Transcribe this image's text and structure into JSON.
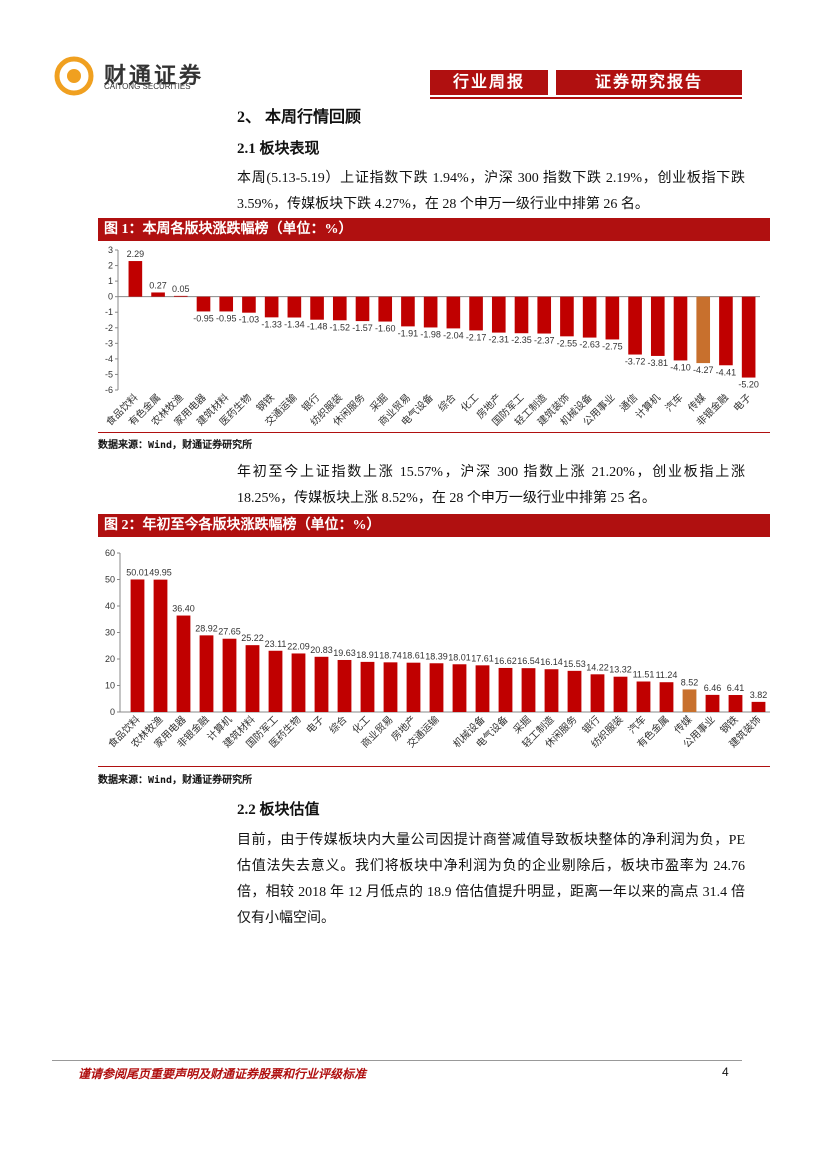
{
  "header": {
    "logo_cn": "财通证券",
    "logo_en": "CAITONG SECURITIES",
    "tab1": "行业周报",
    "tab2": "证券研究报告"
  },
  "section_title": "2、 本周行情回顾",
  "sub1": {
    "title": "2.1  板块表现",
    "para1": "本周(5.13-5.19）上证指数下跌 1.94%，沪深 300 指数下跌 2.19%，创业板指下跌 3.59%，传媒板块下跌 4.27%，在 28 个申万一级行业中排第 26 名。",
    "para2": "年初至今上证指数上涨 15.57%，沪深 300 指数上涨 21.20%，创业板指上涨 18.25%，传媒板块上涨 8.52%，在 28 个申万一级行业中排第 25 名。"
  },
  "sub2": {
    "title": "2.2  板块估值",
    "para": "目前，由于传媒板块内大量公司因提计商誉减值导致板块整体的净利润为负，PE 估值法失去意义。我们将板块中净利润为负的企业剔除后，板块市盈率为 24.76 倍，相较 2018 年 12 月低点的 18.9 倍估值提升明显，距离一年以来的高点 31.4 倍仅有小幅空间。"
  },
  "chart_data": [
    {
      "type": "bar",
      "title": "图 1：本周各版块涨跌幅榜（单位：%）",
      "source": "数据来源：Wind，财通证券研究所",
      "categories": [
        "食品饮料",
        "有色金属",
        "农林牧渔",
        "家用电器",
        "建筑材料",
        "医药生物",
        "钢铁",
        "交通运输",
        "银行",
        "纺织服装",
        "休闲服务",
        "采掘",
        "商业贸易",
        "电气设备",
        "综合",
        "化工",
        "房地产",
        "国防军工",
        "轻工制造",
        "建筑装饰",
        "机械设备",
        "公用事业",
        "通信",
        "计算机",
        "汽车",
        "传媒",
        "非银金融",
        "电子"
      ],
      "values": [
        2.29,
        0.27,
        0.05,
        -0.95,
        -0.95,
        -1.03,
        -1.33,
        -1.34,
        -1.48,
        -1.52,
        -1.57,
        -1.6,
        -1.91,
        -1.98,
        -2.04,
        -2.17,
        -2.31,
        -2.35,
        -2.37,
        -2.55,
        -2.63,
        -2.75,
        -3.72,
        -3.81,
        -4.1,
        -4.27,
        -4.41,
        -5.2
      ],
      "value_labels": [
        "2.29",
        "0.27",
        "0.05",
        "-0.95",
        "-0.95",
        "-1.03",
        "-1.33",
        "-1.34",
        "-1.48",
        "-1.52",
        "-1.57",
        "-1.60",
        "-1.91",
        "-1.98",
        "-2.04",
        "-2.17",
        "-2.31",
        "-2.35",
        "-2.37",
        "-2.55",
        "-2.63",
        "-2.75",
        "-3.72",
        "-3.81",
        "-4.10",
        "-4.27",
        "-4.41",
        "-5.20"
      ],
      "color": "#c00000",
      "highlight": "传媒",
      "highlight_color": "#c8702d",
      "ylim": [
        -6,
        3
      ],
      "yticks": [
        3,
        2,
        1,
        0,
        -1,
        -2,
        -3,
        -4,
        -5,
        -6
      ]
    },
    {
      "type": "bar",
      "title": "图 2：年初至今各版块涨跌幅榜（单位：%）",
      "source": "数据来源：Wind，财通证券研究所",
      "categories": [
        "食品饮料",
        "农林牧渔",
        "家用电器",
        "非银金融",
        "计算机",
        "建筑材料",
        "国防军工",
        "医药生物",
        "电子",
        "综合",
        "化工",
        "商业贸易",
        "房地产",
        "交通运输",
        null,
        "机械设备",
        "电气设备",
        "采掘",
        "轻工制造",
        "休闲服务",
        "银行",
        "纺织服装",
        "汽车",
        "有色金属",
        "传媒",
        "公用事业",
        "钢铁",
        "建筑装饰"
      ],
      "values": [
        50.01,
        49.95,
        36.4,
        28.92,
        27.65,
        25.22,
        23.11,
        22.09,
        20.83,
        19.63,
        18.91,
        18.74,
        18.61,
        18.39,
        18.01,
        17.61,
        16.62,
        16.54,
        16.14,
        15.53,
        14.22,
        13.32,
        11.51,
        11.24,
        8.52,
        6.46,
        6.41,
        3.82
      ],
      "value_labels": [
        "50.01",
        "49.95",
        "36.40",
        "28.92",
        "27.65",
        "25.22",
        "23.11",
        "22.09",
        "20.83",
        "19.63",
        "18.91",
        "18.74",
        "18.61",
        "18.39",
        "18.01",
        "17.61",
        "16.62",
        "16.54",
        "16.14",
        "15.53",
        "14.22",
        "13.32",
        "11.51",
        "11.24",
        "8.52",
        "6.46",
        "6.41",
        "3.82"
      ],
      "color": "#c00000",
      "highlight": "传媒",
      "highlight_color": "#c8702d",
      "ylim": [
        0,
        60
      ],
      "yticks": [
        0,
        10,
        20,
        30,
        40,
        50,
        60
      ]
    }
  ],
  "footer": {
    "note": "谨请参阅尾页重要声明及财通证券股票和行业评级标准",
    "page": "4"
  }
}
